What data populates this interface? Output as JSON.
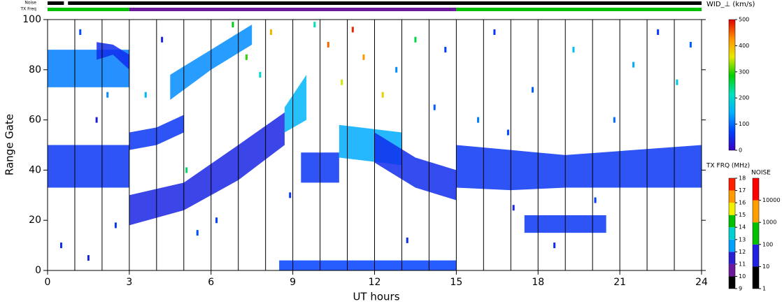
{
  "chart_data": {
    "type": "range-time",
    "xlabel": "UT hours",
    "ylabel": "Range Gate",
    "xlim": [
      0,
      24
    ],
    "xticks": [
      0,
      3,
      6,
      9,
      12,
      15,
      18,
      21,
      24
    ],
    "ylim": [
      0,
      100
    ],
    "yticks": [
      0,
      20,
      40,
      60,
      80,
      100
    ],
    "hour_lines": true,
    "width_colorbar": {
      "title": "WID_⊥ (km/s)",
      "lim": [
        0,
        500
      ],
      "ticks": [
        0,
        100,
        200,
        300,
        400,
        500
      ],
      "colorscale": [
        "#3a00c0",
        "#0040ff",
        "#00b0ff",
        "#00e0c0",
        "#00d000",
        "#e8e800",
        "#ff9000",
        "#e00000"
      ]
    },
    "tx_colorbar": {
      "title": "TX FRQ (MHz)",
      "lim": [
        9,
        18
      ],
      "ticks": [
        9,
        10,
        11,
        12,
        13,
        14,
        15,
        16,
        17,
        18
      ],
      "colors": [
        "#000000",
        "#6a1a9a",
        "#2a20d0",
        "#00a0ff",
        "#00d0d0",
        "#00c000",
        "#f0f000",
        "#ff9a00",
        "#ff2000"
      ]
    },
    "noise_colorbar": {
      "title": "NOISE",
      "lim": [
        1,
        100000
      ],
      "log": true,
      "ticks": [
        1,
        10,
        100,
        1000,
        10000
      ],
      "colors": [
        "#000000",
        "#2020e0",
        "#00c000",
        "#ffa000",
        "#ff0000"
      ]
    },
    "noise_strip": {
      "label": "Noise",
      "segments": [
        {
          "start": 0,
          "end": 0.6,
          "value": 1
        },
        {
          "start": 0.75,
          "end": 24,
          "value": 1
        }
      ]
    },
    "tx_strip": {
      "label": "TX Freq",
      "segments": [
        {
          "start": 0,
          "end": 3,
          "value": 14.5
        },
        {
          "start": 3,
          "end": 15,
          "value": 10.5
        },
        {
          "start": 15,
          "end": 24,
          "value": 14.5
        }
      ]
    },
    "bands": [
      {
        "t": [
          0,
          3
        ],
        "low": [
          33,
          33
        ],
        "high": [
          50,
          50
        ],
        "width": 60
      },
      {
        "t": [
          0,
          3
        ],
        "low": [
          73,
          73
        ],
        "high": [
          88,
          88
        ],
        "width": 110
      },
      {
        "t": [
          1.8,
          2.4,
          3
        ],
        "low": [
          84,
          86,
          80
        ],
        "high": [
          91,
          90,
          86
        ],
        "width": 50
      },
      {
        "t": [
          3,
          4,
          5
        ],
        "low": [
          48,
          50,
          55
        ],
        "high": [
          55,
          57,
          62
        ],
        "width": 60
      },
      {
        "t": [
          3,
          5,
          7,
          8.7
        ],
        "low": [
          18,
          24,
          36,
          50
        ],
        "high": [
          30,
          35,
          50,
          63
        ],
        "width": 40
      },
      {
        "t": [
          4.5,
          6,
          7.5
        ],
        "low": [
          68,
          80,
          90
        ],
        "high": [
          78,
          88,
          98
        ],
        "width": 120
      },
      {
        "t": [
          8.7,
          9.5
        ],
        "low": [
          55,
          60
        ],
        "high": [
          65,
          78
        ],
        "width": 150
      },
      {
        "t": [
          9.3,
          10.7
        ],
        "low": [
          35,
          35
        ],
        "high": [
          47,
          47
        ],
        "width": 60
      },
      {
        "t": [
          10.7,
          13
        ],
        "low": [
          45,
          42
        ],
        "high": [
          58,
          55
        ],
        "width": 140
      },
      {
        "t": [
          12,
          13.5,
          15
        ],
        "low": [
          43,
          33,
          28
        ],
        "high": [
          55,
          45,
          40
        ],
        "width": 50
      },
      {
        "t": [
          15,
          17,
          19,
          24
        ],
        "low": [
          33,
          32,
          33,
          33
        ],
        "high": [
          50,
          48,
          46,
          50
        ],
        "width": 60
      },
      {
        "t": [
          17.5,
          20.5
        ],
        "low": [
          15,
          15
        ],
        "high": [
          22,
          22
        ],
        "width": 60
      },
      {
        "t": [
          8.5,
          15
        ],
        "low": [
          0,
          0
        ],
        "high": [
          4,
          4
        ],
        "width": 70
      }
    ],
    "points": {
      "t": [
        1.2,
        1.8,
        2.5,
        3.6,
        4.2,
        5.1,
        5.5,
        6.2,
        7.3,
        7.8,
        8.2,
        9.8,
        10.3,
        10.8,
        11.2,
        11.6,
        12.3,
        12.8,
        13.5,
        14.2,
        14.6,
        15.8,
        16.4,
        17.1,
        17.8,
        18.6,
        19.3,
        20.1,
        20.8,
        21.5,
        22.4,
        23.1,
        23.6,
        0.5,
        1.5,
        2.2,
        6.8,
        8.9,
        13.2,
        16.9
      ],
      "gate": [
        95,
        60,
        18,
        70,
        92,
        40,
        15,
        20,
        85,
        78,
        95,
        98,
        90,
        75,
        96,
        85,
        70,
        80,
        92,
        65,
        88,
        60,
        95,
        25,
        72,
        10,
        88,
        28,
        60,
        82,
        95,
        75,
        90,
        10,
        5,
        70,
        98,
        30,
        12,
        55
      ],
      "width": [
        80,
        30,
        60,
        150,
        40,
        250,
        80,
        70,
        300,
        200,
        400,
        220,
        450,
        350,
        480,
        420,
        380,
        120,
        260,
        90,
        70,
        110,
        60,
        40,
        90,
        50,
        160,
        70,
        100,
        140,
        60,
        180,
        90,
        50,
        40,
        120,
        280,
        60,
        50,
        75
      ]
    }
  }
}
